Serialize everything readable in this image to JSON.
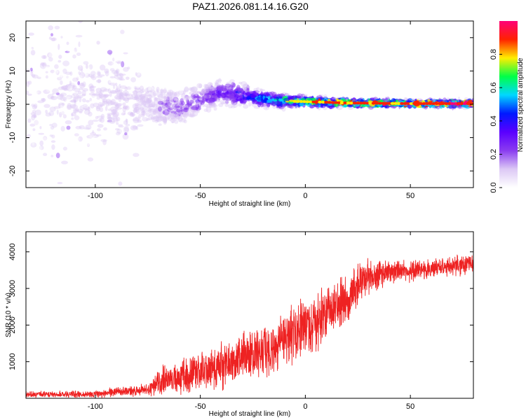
{
  "title": "PAZ1.2026.081.14.16.G20",
  "chart_data": [
    {
      "type": "heatmap",
      "name": "spectrogram",
      "xlabel": "Height of straight line (km)",
      "ylabel": "Frequency (Hz)",
      "xlim": [
        -133,
        80
      ],
      "ylim": [
        -25,
        25
      ],
      "x_ticks": [
        -100,
        -50,
        0,
        50
      ],
      "y_ticks": [
        -20,
        -10,
        0,
        10,
        20
      ],
      "colorbar": {
        "label": "Normalized spectral amplitude",
        "range": [
          0.0,
          1.0
        ],
        "ticks": [
          0.0,
          0.2,
          0.4,
          0.6,
          0.8
        ],
        "tick_labels": [
          "0.0",
          "0.2",
          "0.4",
          "0.6",
          "0.8"
        ],
        "colormap": [
          "#ffffff",
          "#dcc8f5",
          "#8a3cf0",
          "#5a00ff",
          "#0018ff",
          "#00d8ff",
          "#00ff48",
          "#ffee00",
          "#ff2200",
          "#ff0078"
        ]
      },
      "ridge": [
        {
          "x": -133,
          "f": 1.5,
          "spread": 20,
          "amp": 0.06
        },
        {
          "x": -110,
          "f": 1.5,
          "spread": 18,
          "amp": 0.08
        },
        {
          "x": -90,
          "f": 1.0,
          "spread": 14,
          "amp": 0.1
        },
        {
          "x": -76,
          "f": 0.0,
          "spread": 6,
          "amp": 0.12
        },
        {
          "x": -60,
          "f": -1.0,
          "spread": 4,
          "amp": 0.22
        },
        {
          "x": -40,
          "f": 3.5,
          "spread": 3.5,
          "amp": 0.3
        },
        {
          "x": -25,
          "f": 2.0,
          "spread": 2.5,
          "amp": 0.45
        },
        {
          "x": -10,
          "f": 1.0,
          "spread": 1.5,
          "amp": 0.7
        },
        {
          "x": 0,
          "f": 0.8,
          "spread": 1.2,
          "amp": 0.8
        },
        {
          "x": 20,
          "f": 0.4,
          "spread": 0.9,
          "amp": 0.88
        },
        {
          "x": 50,
          "f": 0.2,
          "spread": 0.8,
          "amp": 0.9
        },
        {
          "x": 80,
          "f": 0.2,
          "spread": 0.8,
          "amp": 0.92
        }
      ]
    },
    {
      "type": "line",
      "name": "snr",
      "xlabel": "Height of straight line (km)",
      "ylabel": "SNR (10 * v/v)",
      "xlim": [
        -133,
        80
      ],
      "ylim": [
        0,
        4550
      ],
      "x_ticks": [
        -100,
        -50,
        0,
        50
      ],
      "y_ticks": [
        1000,
        2000,
        3000,
        4000
      ],
      "color": "#ee2222",
      "envelope": [
        {
          "x": -133,
          "mean": 100,
          "noise": 80
        },
        {
          "x": -100,
          "mean": 120,
          "noise": 100
        },
        {
          "x": -80,
          "mean": 220,
          "noise": 160
        },
        {
          "x": -74,
          "mean": 250,
          "noise": 180
        },
        {
          "x": -70,
          "mean": 450,
          "noise": 400
        },
        {
          "x": -50,
          "mean": 700,
          "noise": 520
        },
        {
          "x": -25,
          "mean": 1200,
          "noise": 750
        },
        {
          "x": 0,
          "mean": 1900,
          "noise": 800
        },
        {
          "x": 10,
          "mean": 2300,
          "noise": 750
        },
        {
          "x": 20,
          "mean": 2700,
          "noise": 700
        },
        {
          "x": 28,
          "mean": 3300,
          "noise": 500
        },
        {
          "x": 40,
          "mean": 3450,
          "noise": 320
        },
        {
          "x": 55,
          "mean": 3500,
          "noise": 280
        },
        {
          "x": 70,
          "mean": 3600,
          "noise": 280
        },
        {
          "x": 80,
          "mean": 3650,
          "noise": 280
        }
      ]
    }
  ]
}
